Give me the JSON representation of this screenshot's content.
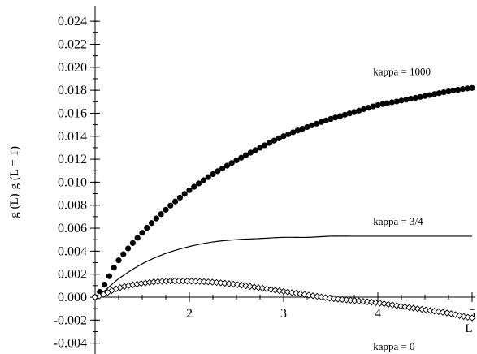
{
  "chart_data": {
    "type": "scatter",
    "title": "",
    "xlabel": "L",
    "ylabel": "g (L)-g (L = 1)",
    "xlim": [
      1,
      5
    ],
    "ylim": [
      -0.005,
      0.025
    ],
    "x_ticks": [
      2,
      3,
      4,
      5
    ],
    "y_ticks": [
      0.024,
      0.022,
      0.02,
      0.018,
      0.016,
      0.014,
      0.012,
      0.01,
      0.008,
      0.006,
      0.004,
      0.002,
      0.0,
      -0.002,
      -0.004
    ],
    "y_tick_labels": [
      "0.024",
      "0.022",
      "0.020",
      "0.018",
      "0.016",
      "0.014",
      "0.012",
      "0.010",
      "0.008",
      "0.006",
      "0.004",
      "0.002",
      "0.000",
      "-0.002",
      "-0.004"
    ],
    "x_tick_labels": [
      "2",
      "3",
      "4",
      "5"
    ],
    "grid": false,
    "legend": "none",
    "series": [
      {
        "name": "kappa = 1000",
        "style": "filled-circles",
        "color": "#000000",
        "x": [
          1.0,
          1.25,
          1.5,
          1.75,
          2.0,
          2.25,
          2.5,
          2.75,
          3.0,
          3.25,
          3.5,
          3.75,
          4.0,
          4.25,
          4.5,
          4.75,
          5.0
        ],
        "y": [
          0.0,
          0.0032,
          0.0056,
          0.0076,
          0.0093,
          0.0107,
          0.0119,
          0.013,
          0.014,
          0.0148,
          0.0155,
          0.0161,
          0.0167,
          0.0171,
          0.0175,
          0.0179,
          0.0182
        ]
      },
      {
        "name": "kappa = 3/4",
        "style": "line",
        "color": "#000000",
        "x": [
          1.0,
          1.25,
          1.5,
          1.75,
          2.0,
          2.25,
          2.5,
          2.75,
          3.0,
          3.25,
          3.5,
          3.75,
          4.0,
          4.25,
          4.5,
          4.75,
          5.0
        ],
        "y": [
          0.0,
          0.0016,
          0.0029,
          0.0038,
          0.0044,
          0.0048,
          0.005,
          0.0051,
          0.0052,
          0.0052,
          0.0053,
          0.0053,
          0.0053,
          0.0053,
          0.0053,
          0.0053,
          0.0053
        ]
      },
      {
        "name": "kappa = 0",
        "style": "open-diamonds",
        "color": "#000000",
        "x": [
          1.0,
          1.25,
          1.5,
          1.75,
          2.0,
          2.25,
          2.5,
          2.75,
          3.0,
          3.25,
          3.5,
          3.75,
          4.0,
          4.25,
          4.5,
          4.75,
          5.0
        ],
        "y": [
          0.0,
          0.0008,
          0.0012,
          0.0014,
          0.0014,
          0.0013,
          0.0011,
          0.0008,
          0.0005,
          0.0002,
          -0.0001,
          -0.0003,
          -0.0005,
          -0.0008,
          -0.0011,
          -0.0014,
          -0.0018
        ]
      }
    ],
    "annotations": [
      {
        "text": "kappa = 1000",
        "x": 3.95,
        "y": 0.0193
      },
      {
        "text": "kappa = 3/4",
        "x": 3.95,
        "y": 0.0063
      },
      {
        "text": "kappa = 0",
        "x": 3.95,
        "y": -0.0046
      }
    ]
  }
}
